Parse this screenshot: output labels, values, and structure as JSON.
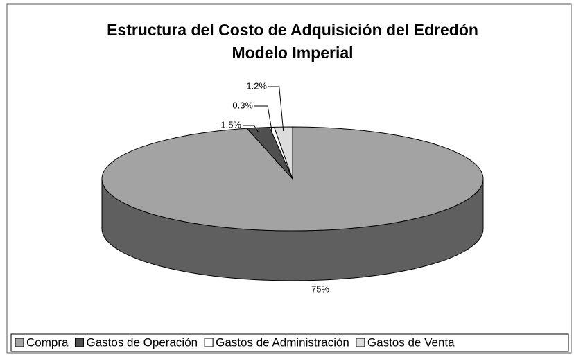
{
  "chart_data": {
    "type": "pie",
    "title": [
      "Estructura del Costo de Adquisición del Edredón",
      "Modelo Imperial"
    ],
    "categories": [
      "Compra",
      "Gastos de Operación",
      "Gastos de Administración",
      "Gastos de Venta"
    ],
    "values": [
      75,
      1.5,
      0.3,
      1.2
    ],
    "value_labels": [
      "75%",
      "1.5%",
      "0.3%",
      "1.2%"
    ],
    "colors": [
      "#a3a3a3",
      "#4f4f4f",
      "#ffffff",
      "#dcdcdc"
    ],
    "legend": "bottom"
  }
}
